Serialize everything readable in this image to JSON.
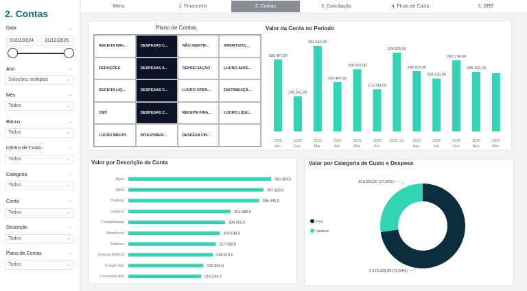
{
  "page_title": "2. Contas",
  "nav": {
    "tabs": [
      {
        "label": "Menu"
      },
      {
        "label": "1. Financeiro"
      },
      {
        "label": "2. Contas",
        "active": true
      },
      {
        "label": "3. Conciliação"
      },
      {
        "label": "4. Fluxo de Caixa"
      },
      {
        "label": "5. DRE"
      }
    ]
  },
  "filters": {
    "data": {
      "label": "Data",
      "start": "01/01/2024",
      "end": "31/12/2025"
    },
    "ano": {
      "label": "Ano",
      "value": "Seleções múltiplas"
    },
    "mes": {
      "label": "Mês",
      "value": "Todos"
    },
    "banco": {
      "label": "Banco",
      "value": "Todos"
    },
    "centro": {
      "label": "Centro de Custo",
      "value": "Todos"
    },
    "categoria": {
      "label": "Categoria",
      "value": "Todos"
    },
    "conta": {
      "label": "Conta",
      "value": "Todos"
    },
    "descricao": {
      "label": "Descrição",
      "value": "Todos"
    },
    "plano": {
      "label": "Plano de Contas",
      "value": "Todos"
    }
  },
  "plano_de_contas": {
    "title": "Plano de Contas",
    "items": [
      {
        "label": "RECEITA BRU...",
        "selected": false
      },
      {
        "label": "DESPESAS C...",
        "selected": true
      },
      {
        "label": "NÃO IDENTIF...",
        "selected": false
      },
      {
        "label": "AMORTIZAÇ...",
        "selected": false
      },
      {
        "label": "DEDUÇÕES",
        "selected": false
      },
      {
        "label": "DESPESAS A...",
        "selected": true
      },
      {
        "label": "DEPRECIAÇÃO",
        "selected": false
      },
      {
        "label": "LUCRO ANTE...",
        "selected": false
      },
      {
        "label": "RECEITA LÍQ...",
        "selected": false
      },
      {
        "label": "DESPESAS C...",
        "selected": true
      },
      {
        "label": "LUCRO OPER...",
        "selected": false
      },
      {
        "label": "DISTRIBUIÇÃ...",
        "selected": false
      },
      {
        "label": "CMV",
        "selected": false
      },
      {
        "label": "DESPESAS C...",
        "selected": true
      },
      {
        "label": "RECEITA FINA...",
        "selected": false
      },
      {
        "label": "LUCRO LÍQUI...",
        "selected": false
      },
      {
        "label": "LUCRO BRUTO",
        "selected": false
      },
      {
        "label": "INVESTIMEN...",
        "selected": false
      },
      {
        "label": "DESPESA FIN...",
        "selected": false
      },
      {
        "label": "",
        "selected": false
      }
    ]
  },
  "chart_data": [
    {
      "type": "bar",
      "title": "Valor da Conta no Período",
      "categories": [
        "2025 Jan.",
        "2025 Fev.",
        "2025 Mar.",
        "2025 Abr.",
        "2025 Mai.",
        "2025 Jun.",
        "2025 Jul.",
        "2025 Ago.",
        "2025 Set.",
        "2025 Out.",
        "2025 Nov.",
        "2025 Dez."
      ],
      "values": [
        296457,
        145541,
        352564,
        203487,
        256072,
        173784,
        324916,
        248602,
        218230,
        292734,
        245312,
        null
      ],
      "labels": [
        "296.457,00",
        "145.541,00",
        "352.564,00",
        "203.487,00",
        "256.072,00",
        "173.784,00",
        "324.916,00",
        "248.602,00",
        "218.230,00",
        "292.734,00",
        "245.312,00",
        ""
      ],
      "estimated_unlabeled": {
        "2025 Dez.": 240000
      },
      "color": "#32d4b4"
    },
    {
      "type": "bar",
      "orientation": "horizontal",
      "title": "Valor por Descrição da Conta",
      "categories": [
        "Água",
        "INSS",
        "Panfleto",
        "Limpeza",
        "Contabilidade",
        "Benefícios",
        "Salários",
        "Energia Elétrica",
        "Google Ads",
        "Facebook Ads"
      ],
      "values": [
        419383,
        397183,
        384445,
        301086,
        284052,
        269148,
        257098,
        248579,
        220906,
        214244
      ],
      "labels": [
        "419.383,0",
        "397.183,0",
        "384.445,0",
        "301.086,0",
        "284.052,0",
        "269.148,0",
        "257.098,0",
        "248.579,0",
        "220.906,0",
        "214.244,0"
      ],
      "color": "#32d4b4"
    },
    {
      "type": "pie",
      "donut": true,
      "title": "Valor por Categoria de Custo e Despesa",
      "series": [
        {
          "name": "Fixa",
          "value": 2176529,
          "label": "2.176.529,00 (72,64%)",
          "color": "#0a2e3d"
        },
        {
          "name": "Variável",
          "value": 819595,
          "label": "819.595,00 (27,36%)",
          "color": "#32d4b4"
        }
      ],
      "legend": "left"
    }
  ]
}
